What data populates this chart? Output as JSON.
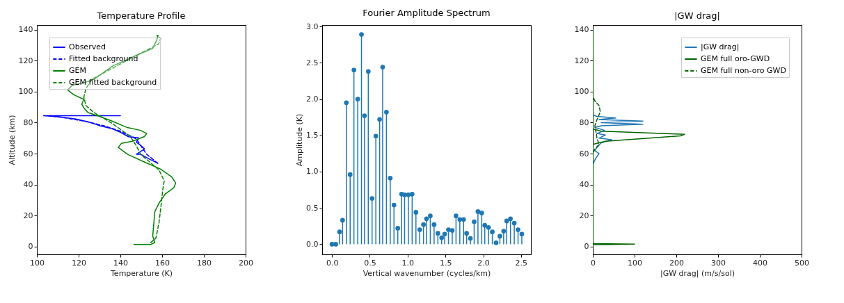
{
  "chart_data": [
    {
      "type": "line",
      "title": "Temperature Profile",
      "xlabel": "Temperature (K)",
      "ylabel": "Altitude (km)",
      "xlim": [
        100,
        200
      ],
      "xticks": [
        100,
        120,
        140,
        160,
        180,
        200
      ],
      "ylim": [
        -5,
        143
      ],
      "yticks": [
        0,
        20,
        40,
        60,
        80,
        100,
        120,
        140
      ],
      "grid": false,
      "legend": "top left",
      "series": [
        {
          "name": "Observed",
          "color": "#0000ff",
          "line_style": "solid",
          "x": [
            157.9,
            153.5,
            149.7,
            147.7,
            151.6,
            149.7,
            147.7,
            148.7,
            143.9,
            140,
            136.1,
            130.3,
            125.5,
            118.7,
            111,
            103.2,
            140
          ],
          "values": [
            53.8,
            56.7,
            59.6,
            59.6,
            63,
            65.3,
            67.4,
            70.2,
            70.9,
            73.8,
            76,
            78,
            80.2,
            82.3,
            83.7,
            84.5,
            84.5
          ]
        },
        {
          "name": "Fitted background",
          "color": "#0000ff",
          "line_style": "dashed",
          "x": [
            157.9,
            152.6,
            149.7,
            147.7,
            140,
            132.2,
            122.5,
            113.8,
            106.1
          ],
          "values": [
            53.8,
            59.6,
            65.3,
            69.5,
            74.5,
            78,
            81,
            83,
            84.5
          ]
        },
        {
          "name": "GEM",
          "color": "#008000",
          "line_style": "solid",
          "x": [
            146.5,
            154.5,
            156.5,
            155.5,
            156.5,
            158.5,
            161.5,
            165.6,
            166.5,
            164.6,
            159.3,
            152.5,
            143.5,
            139,
            140.5,
            145.8,
            151.5,
            152.6,
            149.7,
            143,
            136,
            130,
            124.5,
            122.5,
            121.5,
            122.5,
            117.7,
            114.8,
            116.8,
            124.5,
            127.4,
            136.2,
            147.8,
            155.5,
            157.5,
            158
          ],
          "values": [
            1.4,
            1.4,
            2.6,
            6.8,
            22.5,
            28,
            34,
            38,
            41,
            45,
            50,
            54,
            59.5,
            64,
            66.6,
            68,
            71,
            73,
            75,
            77,
            81,
            84,
            86.5,
            89.5,
            92,
            95,
            98,
            101,
            104,
            106.5,
            108,
            116.5,
            123.5,
            128,
            133.6,
            136.4
          ]
        },
        {
          "name": "GEM fitted background",
          "color": "#008000",
          "line_style": "dashed",
          "x": [
            154.5,
            157,
            158.5,
            159.5,
            160.3,
            161,
            158.5,
            149.7,
            147.7,
            144.8,
            136,
            127.4,
            123.5,
            122.5,
            123.5,
            126.4,
            147.8,
            158.3,
            159.3,
            157.5
          ],
          "values": [
            2.6,
            5.4,
            15.4,
            26.7,
            36.7,
            42.4,
            49.5,
            59.6,
            65,
            71,
            79.6,
            86.5,
            91,
            96.5,
            102,
            108,
            123.5,
            130.7,
            134.3,
            136.4
          ]
        }
      ]
    },
    {
      "type": "lollipop",
      "title": "Fourier Amplitude Spectrum",
      "xlabel": "Vertical wavenumber (cycles/km)",
      "ylabel": "Amplitude (K)",
      "xlim": [
        -0.13,
        2.63
      ],
      "xticks": [
        {
          "value": 0,
          "label": "0.0"
        },
        0.5,
        {
          "value": 1,
          "label": "1.0"
        },
        1.5,
        {
          "value": 2,
          "label": "2.0"
        },
        2.5
      ],
      "ylim": [
        -0.14,
        3.02
      ],
      "yticks": [
        {
          "value": 0,
          "label": "0.0"
        },
        0.5,
        {
          "value": 1,
          "label": "1.0"
        },
        1.5,
        {
          "value": 2,
          "label": "2.0"
        },
        2.5,
        {
          "value": 3,
          "label": "3.0"
        }
      ],
      "grid": false,
      "marker": "circle",
      "series": [
        {
          "color": "#1f77b4",
          "x": [
            0,
            0.05,
            0.1,
            0.14,
            0.19,
            0.24,
            0.29,
            0.34,
            0.39,
            0.43,
            0.48,
            0.53,
            0.58,
            0.63,
            0.67,
            0.72,
            0.77,
            0.82,
            0.87,
            0.92,
            0.96,
            1.01,
            1.06,
            1.11,
            1.16,
            1.21,
            1.25,
            1.3,
            1.35,
            1.4,
            1.45,
            1.49,
            1.54,
            1.59,
            1.64,
            1.69,
            1.74,
            1.78,
            1.83,
            1.88,
            1.93,
            1.98,
            2.02,
            2.07,
            2.12,
            2.17,
            2.22,
            2.27,
            2.31,
            2.36,
            2.41,
            2.46,
            2.51
          ],
          "values": [
            0,
            0,
            0.17,
            0.33,
            1.95,
            0.96,
            2.4,
            2,
            2.89,
            1.77,
            2.38,
            0.63,
            1.49,
            1.72,
            2.44,
            1.82,
            0.91,
            0.54,
            0.22,
            0.69,
            0.68,
            0.68,
            0.69,
            0.44,
            0.2,
            0.27,
            0.35,
            0.39,
            0.27,
            0.15,
            0.09,
            0.14,
            0.2,
            0.19,
            0.39,
            0.34,
            0.34,
            0.15,
            0.08,
            0.31,
            0.45,
            0.43,
            0.26,
            0.23,
            0.17,
            0.02,
            0.11,
            0.18,
            0.32,
            0.35,
            0.29,
            0.2,
            0.14
          ]
        }
      ]
    },
    {
      "type": "line",
      "title": "|GW drag|",
      "xlabel": "|GW drag| (m/s/sol)",
      "xlim": [
        0,
        500
      ],
      "xticks": [
        0,
        100,
        200,
        300,
        400,
        500
      ],
      "ylim": [
        -5,
        143
      ],
      "yticks": [
        0,
        20,
        40,
        60,
        80,
        100,
        120,
        140
      ],
      "grid": false,
      "legend": "top right",
      "series": [
        {
          "name": "|GW drag|",
          "color": "#1f77b4",
          "line_style": "solid",
          "x": [
            0,
            5,
            12,
            15,
            5,
            10,
            20,
            45,
            15,
            30,
            10,
            28,
            5,
            20,
            120,
            20,
            120,
            15,
            55,
            10,
            0
          ],
          "values": [
            53,
            56,
            59,
            60,
            62,
            64,
            67,
            69,
            70,
            72,
            73,
            75,
            77,
            78,
            79,
            80,
            81,
            82,
            83,
            84,
            85
          ]
        },
        {
          "name": "GEM full oro-GWD",
          "color": "#006400",
          "line_style": "solid",
          "x": [
            0,
            0,
            100,
            0,
            0,
            30,
            210,
            220,
            20,
            0,
            0
          ],
          "values": [
            0,
            1.2,
            1.6,
            2,
            66,
            68,
            71.5,
            72.5,
            74.5,
            76,
            140
          ]
        },
        {
          "name": "GEM full non-oro GWD",
          "color": "#006400",
          "line_style": "dashed",
          "x": [
            0,
            0,
            5,
            15,
            10,
            5,
            10,
            18,
            15,
            5,
            0,
            0
          ],
          "values": [
            0,
            60,
            63,
            66,
            70,
            78,
            82,
            87,
            91,
            94,
            97,
            140
          ]
        }
      ]
    }
  ]
}
